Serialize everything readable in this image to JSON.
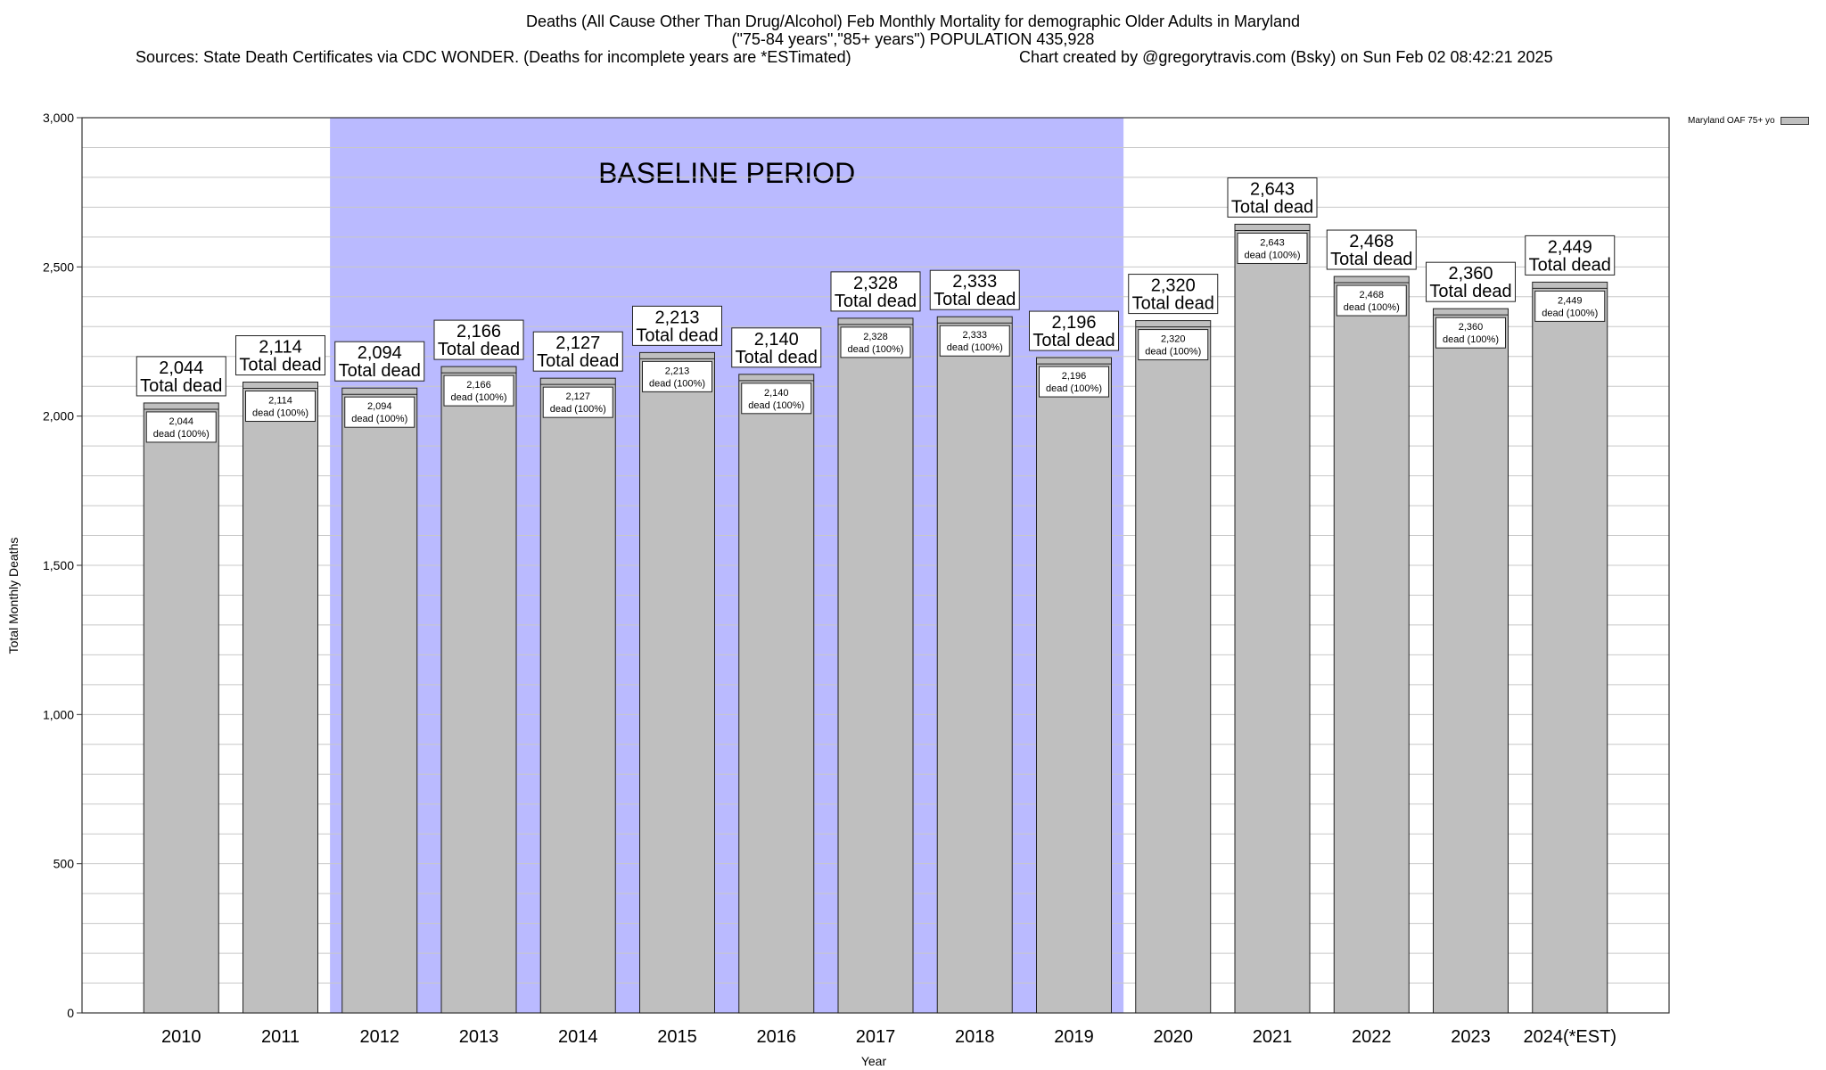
{
  "chart_data": {
    "type": "bar",
    "title_line1": "Deaths (All Cause Other Than Drug/Alcohol) Feb Monthly Mortality for demographic Older Adults in Maryland",
    "title_line2": "(\"75-84 years\",\"85+ years\") POPULATION 435,928",
    "sources": "Sources: State Death Certificates via CDC WONDER. (Deaths for incomplete years are *ESTimated)",
    "credit": "Chart created by @gregorytravis.com (Bsky) on Sun Feb 02 08:42:21 2025",
    "xlabel": "Year",
    "ylabel": "Total Monthly Deaths",
    "ylim": [
      0,
      3000
    ],
    "yticks": [
      0,
      500,
      1000,
      1500,
      2000,
      2500,
      3000
    ],
    "ytick_labels": [
      "0",
      "500",
      "1,000",
      "1,500",
      "2,000",
      "2,500",
      "3,000"
    ],
    "grid": "horizontal",
    "legend": {
      "placement": "top-right",
      "label": "Maryland OAF 75+ yo"
    },
    "baseline": {
      "label": "BASELINE PERIOD",
      "start": "2012",
      "end": "2019",
      "color": "#babaff"
    },
    "bar_color": "#bfbfbf",
    "categories": [
      "2010",
      "2011",
      "2012",
      "2013",
      "2014",
      "2015",
      "2016",
      "2017",
      "2018",
      "2019",
      "2020",
      "2021",
      "2022",
      "2023",
      "2024(*EST)"
    ],
    "values": [
      2044,
      2114,
      2094,
      2166,
      2127,
      2213,
      2140,
      2328,
      2333,
      2196,
      2320,
      2643,
      2468,
      2360,
      2449
    ],
    "value_labels": [
      "2,044",
      "2,114",
      "2,094",
      "2,166",
      "2,127",
      "2,213",
      "2,140",
      "2,328",
      "2,333",
      "2,196",
      "2,320",
      "2,643",
      "2,468",
      "2,360",
      "2,449"
    ],
    "total_label": "Total dead",
    "inner_label": "dead (100%)"
  }
}
